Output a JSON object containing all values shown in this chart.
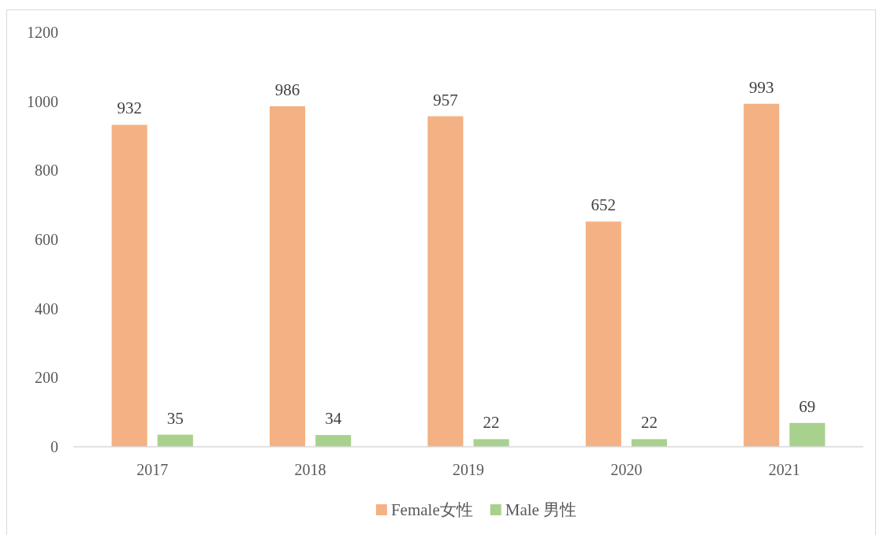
{
  "chart_data": {
    "type": "bar",
    "categories": [
      "2017",
      "2018",
      "2019",
      "2020",
      "2021"
    ],
    "series": [
      {
        "name": "Female女性",
        "color": "#f4b183",
        "values": [
          932,
          986,
          957,
          652,
          993
        ]
      },
      {
        "name": "Male 男性",
        "color": "#a9d18e",
        "values": [
          35,
          34,
          22,
          22,
          69
        ]
      }
    ],
    "ylim": [
      0,
      1200
    ],
    "yticks": [
      0,
      200,
      400,
      600,
      800,
      1000,
      1200
    ],
    "data_labels": true,
    "legend": "bottom",
    "grid": false
  }
}
